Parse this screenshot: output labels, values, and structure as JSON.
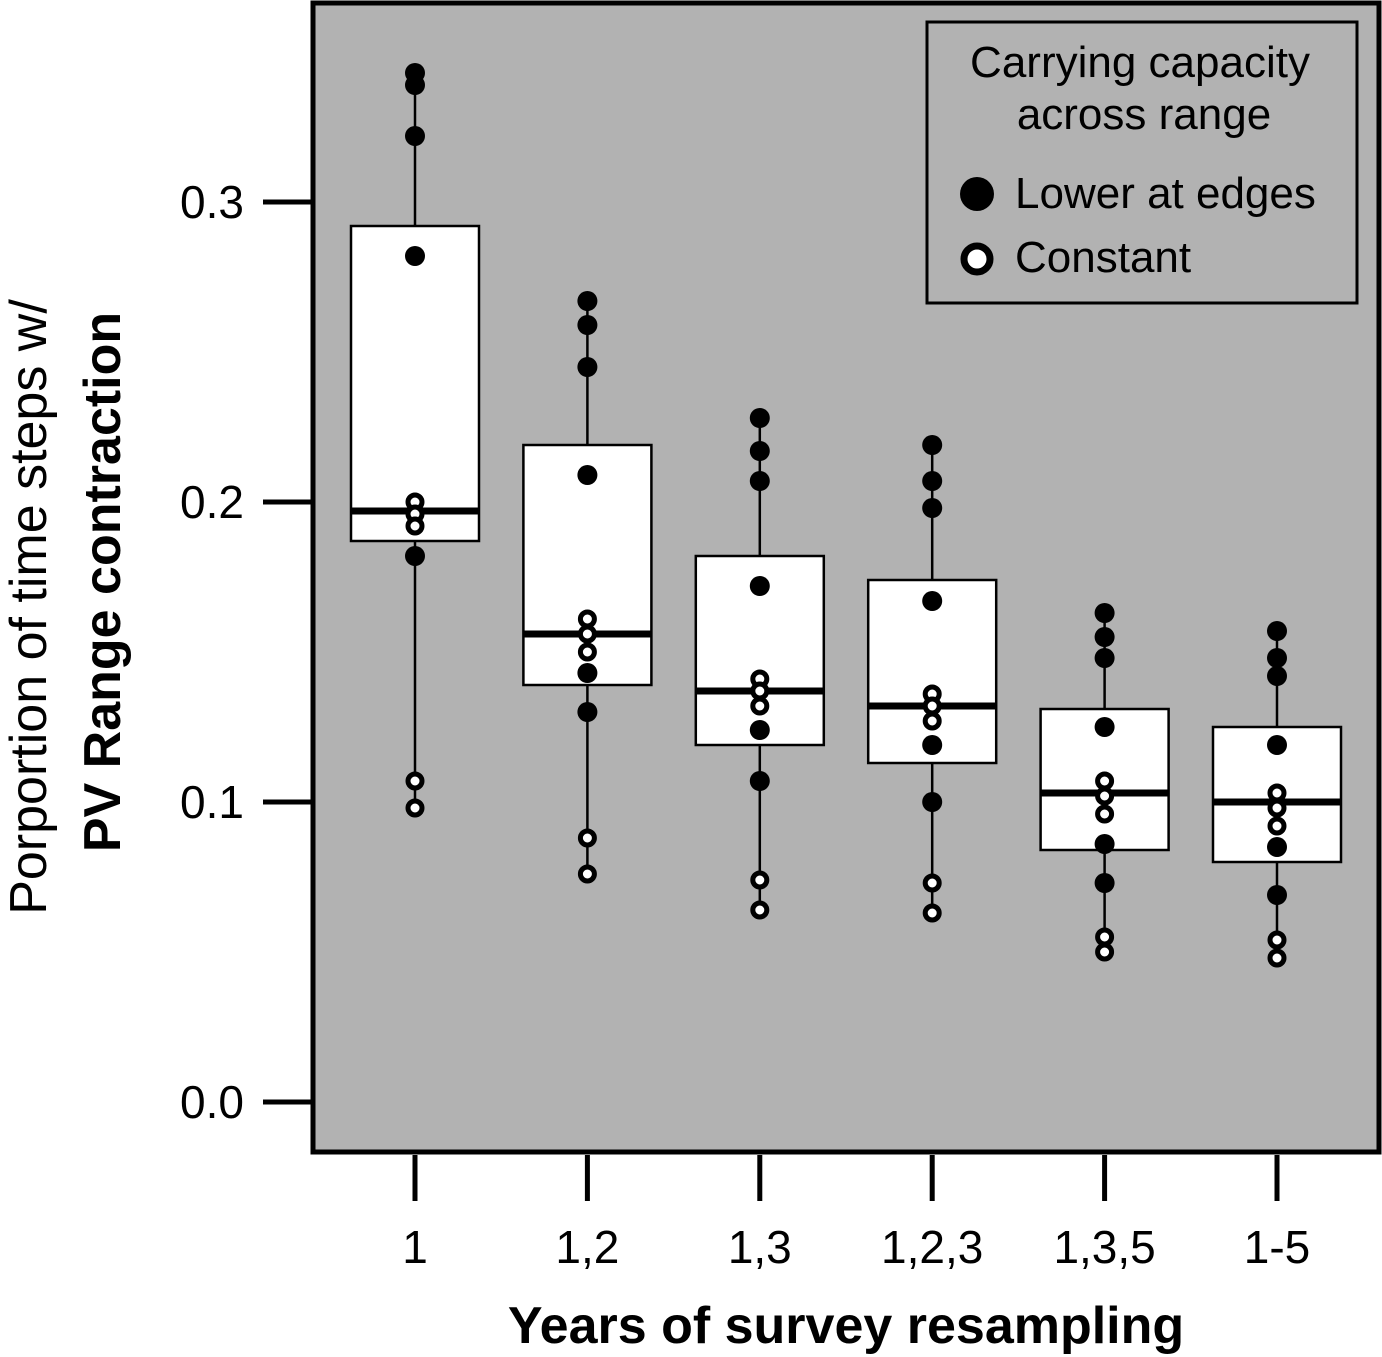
{
  "chart_data": {
    "type": "box",
    "title": "",
    "ylabel_line1": "Porportion of time steps w/",
    "ylabel_line2": "PV Range contraction",
    "xlabel": "Years of survey resampling",
    "ylim": [
      0,
      0.35
    ],
    "yticks": [
      0.0,
      0.1,
      0.2,
      0.3
    ],
    "ytick_labels": [
      "0.0",
      "0.1",
      "0.2",
      "0.3"
    ],
    "categories": [
      "1",
      "1,2",
      "1,3",
      "1,2,3",
      "1,3,5",
      "1-5"
    ],
    "plot_background": "#b2b2b2",
    "box_fill": "#ffffff",
    "boxes": [
      {
        "category": "1",
        "q1": 0.187,
        "median": 0.197,
        "q3": 0.292,
        "whisker_low": 0.098,
        "whisker_high": 0.343
      },
      {
        "category": "1,2",
        "q1": 0.139,
        "median": 0.156,
        "q3": 0.219,
        "whisker_low": 0.076,
        "whisker_high": 0.267
      },
      {
        "category": "1,3",
        "q1": 0.119,
        "median": 0.137,
        "q3": 0.182,
        "whisker_low": 0.064,
        "whisker_high": 0.228
      },
      {
        "category": "1,2,3",
        "q1": 0.113,
        "median": 0.132,
        "q3": 0.174,
        "whisker_low": 0.063,
        "whisker_high": 0.219
      },
      {
        "category": "1,3,5",
        "q1": 0.084,
        "median": 0.103,
        "q3": 0.131,
        "whisker_low": 0.05,
        "whisker_high": 0.163
      },
      {
        "category": "1-5",
        "q1": 0.08,
        "median": 0.1,
        "q3": 0.125,
        "whisker_low": 0.048,
        "whisker_high": 0.157
      }
    ],
    "series": [
      {
        "name": "Lower at edges",
        "marker": "filled",
        "points": [
          {
            "category": "1",
            "values": [
              0.343,
              0.339,
              0.322,
              0.282,
              0.182
            ]
          },
          {
            "category": "1,2",
            "values": [
              0.267,
              0.259,
              0.245,
              0.209,
              0.143,
              0.13
            ]
          },
          {
            "category": "1,3",
            "values": [
              0.228,
              0.217,
              0.207,
              0.172,
              0.124,
              0.107
            ]
          },
          {
            "category": "1,2,3",
            "values": [
              0.219,
              0.207,
              0.198,
              0.167,
              0.119,
              0.1
            ]
          },
          {
            "category": "1,3,5",
            "values": [
              0.163,
              0.155,
              0.148,
              0.125,
              0.086,
              0.073
            ]
          },
          {
            "category": "1-5",
            "values": [
              0.157,
              0.148,
              0.142,
              0.119,
              0.085,
              0.069
            ]
          }
        ]
      },
      {
        "name": "Constant",
        "marker": "open",
        "points": [
          {
            "category": "1",
            "values": [
              0.2,
              0.196,
              0.192,
              0.107,
              0.098
            ]
          },
          {
            "category": "1,2",
            "values": [
              0.161,
              0.156,
              0.15,
              0.088,
              0.076
            ]
          },
          {
            "category": "1,3",
            "values": [
              0.141,
              0.137,
              0.132,
              0.074,
              0.064
            ]
          },
          {
            "category": "1,2,3",
            "values": [
              0.136,
              0.132,
              0.127,
              0.073,
              0.063
            ]
          },
          {
            "category": "1,3,5",
            "values": [
              0.107,
              0.102,
              0.096,
              0.055,
              0.05
            ]
          },
          {
            "category": "1-5",
            "values": [
              0.103,
              0.098,
              0.092,
              0.054,
              0.048
            ]
          }
        ]
      }
    ],
    "legend": {
      "title_line1": "Carrying capacity",
      "title_line2": "across range",
      "entries": [
        "Lower at edges",
        "Constant"
      ],
      "position": "top-right"
    },
    "grid": false
  }
}
